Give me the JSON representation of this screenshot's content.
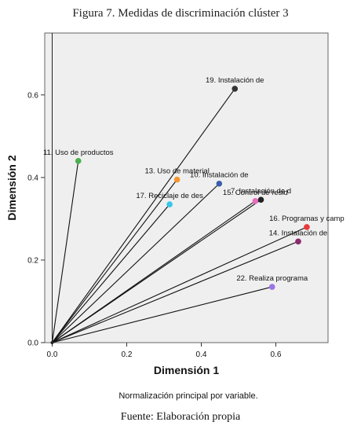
{
  "figure": {
    "title": "Figura 7. Medidas de discriminación clúster 3",
    "note": "Normalización principal por variable.",
    "source": "Fuente: Elaboración propia"
  },
  "chart_data": {
    "type": "scatter",
    "xlabel": "Dimensión 1",
    "ylabel": "Dimensión 2",
    "xlim": [
      -0.02,
      0.74
    ],
    "ylim": [
      0,
      0.75
    ],
    "xticks": [
      "0.0",
      "0.2",
      "0.4",
      "0.6"
    ],
    "yticks": [
      "0.0",
      "0.2",
      "0.4",
      "0.6"
    ],
    "xtick_values": [
      0,
      0.2,
      0.4,
      0.6
    ],
    "ytick_values": [
      0,
      0.2,
      0.4,
      0.6
    ],
    "grid": false,
    "vectors_from_origin": true,
    "points": [
      {
        "label": "19. Instalación de",
        "x": 0.49,
        "y": 0.615,
        "color": "#333333"
      },
      {
        "label": "11. Uso de productos",
        "x": 0.07,
        "y": 0.44,
        "color": "#4caf50"
      },
      {
        "label": "13. Uso de material",
        "x": 0.335,
        "y": 0.395,
        "color": "#f5962e"
      },
      {
        "label": "10. Instalación de",
        "x": 0.448,
        "y": 0.385,
        "color": "#3b5dab"
      },
      {
        "label": "17. Reciclaje de des",
        "x": 0.315,
        "y": 0.335,
        "color": "#36c6e8"
      },
      {
        "label": "15. Control de resid",
        "x": 0.545,
        "y": 0.343,
        "color": "#e86bc0"
      },
      {
        "label": "7. Instalación de d",
        "x": 0.56,
        "y": 0.346,
        "color": "#222222"
      },
      {
        "label": "16. Programas y camp",
        "x": 0.683,
        "y": 0.28,
        "color": "#e83a3a"
      },
      {
        "label": "14. Instalación de",
        "x": 0.66,
        "y": 0.245,
        "color": "#8b2a6e"
      },
      {
        "label": "22. Realiza programa",
        "x": 0.59,
        "y": 0.135,
        "color": "#9b72e8"
      }
    ]
  }
}
